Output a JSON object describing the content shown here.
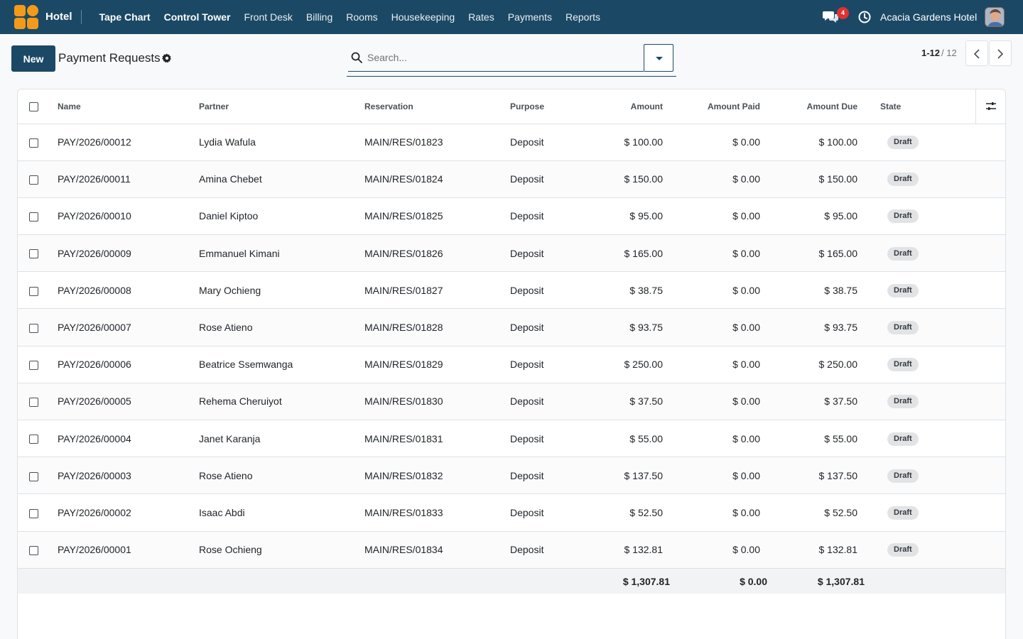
{
  "navbar": {
    "app_name": "Hotel",
    "menu": [
      "Tape Chart",
      "Control Tower",
      "Front Desk",
      "Billing",
      "Rooms",
      "Housekeeping",
      "Rates",
      "Payments",
      "Reports"
    ],
    "chat_badge": "4",
    "company": "Acacia Gardens Hotel"
  },
  "control": {
    "new_label": "New",
    "title": "Payment Requests",
    "search_placeholder": "Search...",
    "pager_value": "1-12",
    "pager_total": "/ 12"
  },
  "table": {
    "headers": {
      "name": "Name",
      "partner": "Partner",
      "reservation": "Reservation",
      "purpose": "Purpose",
      "amount": "Amount",
      "amount_paid": "Amount Paid",
      "amount_due": "Amount Due",
      "state": "State"
    },
    "rows": [
      {
        "name": "PAY/2026/00012",
        "partner": "Lydia Wafula",
        "reservation": "MAIN/RES/01823",
        "purpose": "Deposit",
        "amount": "$ 100.00",
        "paid": "$ 0.00",
        "due": "$ 100.00",
        "state": "Draft"
      },
      {
        "name": "PAY/2026/00011",
        "partner": "Amina Chebet",
        "reservation": "MAIN/RES/01824",
        "purpose": "Deposit",
        "amount": "$ 150.00",
        "paid": "$ 0.00",
        "due": "$ 150.00",
        "state": "Draft"
      },
      {
        "name": "PAY/2026/00010",
        "partner": "Daniel Kiptoo",
        "reservation": "MAIN/RES/01825",
        "purpose": "Deposit",
        "amount": "$ 95.00",
        "paid": "$ 0.00",
        "due": "$ 95.00",
        "state": "Draft"
      },
      {
        "name": "PAY/2026/00009",
        "partner": "Emmanuel Kimani",
        "reservation": "MAIN/RES/01826",
        "purpose": "Deposit",
        "amount": "$ 165.00",
        "paid": "$ 0.00",
        "due": "$ 165.00",
        "state": "Draft"
      },
      {
        "name": "PAY/2026/00008",
        "partner": "Mary Ochieng",
        "reservation": "MAIN/RES/01827",
        "purpose": "Deposit",
        "amount": "$ 38.75",
        "paid": "$ 0.00",
        "due": "$ 38.75",
        "state": "Draft"
      },
      {
        "name": "PAY/2026/00007",
        "partner": "Rose Atieno",
        "reservation": "MAIN/RES/01828",
        "purpose": "Deposit",
        "amount": "$ 93.75",
        "paid": "$ 0.00",
        "due": "$ 93.75",
        "state": "Draft"
      },
      {
        "name": "PAY/2026/00006",
        "partner": "Beatrice Ssemwanga",
        "reservation": "MAIN/RES/01829",
        "purpose": "Deposit",
        "amount": "$ 250.00",
        "paid": "$ 0.00",
        "due": "$ 250.00",
        "state": "Draft"
      },
      {
        "name": "PAY/2026/00005",
        "partner": "Rehema Cheruiyot",
        "reservation": "MAIN/RES/01830",
        "purpose": "Deposit",
        "amount": "$ 37.50",
        "paid": "$ 0.00",
        "due": "$ 37.50",
        "state": "Draft"
      },
      {
        "name": "PAY/2026/00004",
        "partner": "Janet Karanja",
        "reservation": "MAIN/RES/01831",
        "purpose": "Deposit",
        "amount": "$ 55.00",
        "paid": "$ 0.00",
        "due": "$ 55.00",
        "state": "Draft"
      },
      {
        "name": "PAY/2026/00003",
        "partner": "Rose Atieno",
        "reservation": "MAIN/RES/01832",
        "purpose": "Deposit",
        "amount": "$ 137.50",
        "paid": "$ 0.00",
        "due": "$ 137.50",
        "state": "Draft"
      },
      {
        "name": "PAY/2026/00002",
        "partner": "Isaac Abdi",
        "reservation": "MAIN/RES/01833",
        "purpose": "Deposit",
        "amount": "$ 52.50",
        "paid": "$ 0.00",
        "due": "$ 52.50",
        "state": "Draft"
      },
      {
        "name": "PAY/2026/00001",
        "partner": "Rose Ochieng",
        "reservation": "MAIN/RES/01834",
        "purpose": "Deposit",
        "amount": "$ 132.81",
        "paid": "$ 0.00",
        "due": "$ 132.81",
        "state": "Draft"
      }
    ],
    "totals": {
      "amount": "$ 1,307.81",
      "paid": "$ 0.00",
      "due": "$ 1,307.81"
    }
  }
}
